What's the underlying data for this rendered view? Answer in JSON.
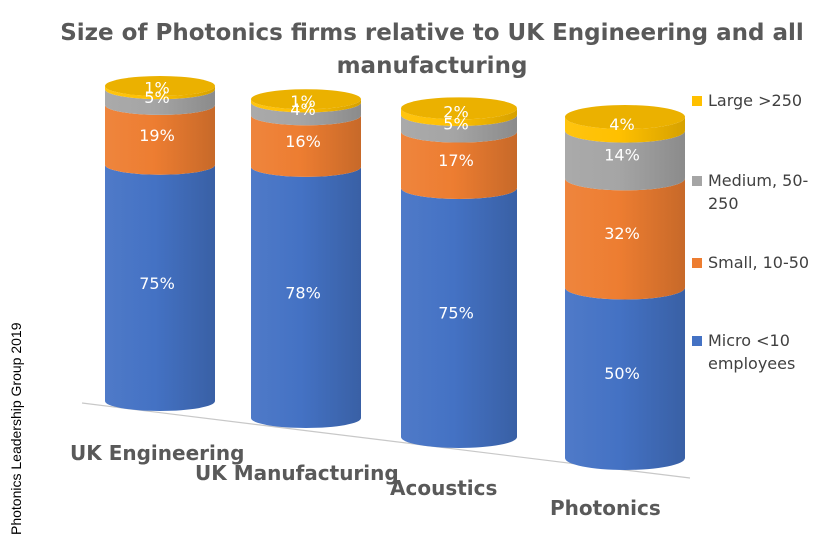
{
  "chart_data": {
    "type": "bar",
    "title_lines": [
      "Size of Photonics firms relative to UK Engineering and all",
      "manufacturing"
    ],
    "categories": [
      "UK Engineering",
      "UK Manufacturing",
      "Acoustics",
      "Photonics"
    ],
    "series": [
      {
        "name": "Micro <10 employees",
        "legend_lines": [
          "Micro <10",
          "employees"
        ],
        "color": "#4472C4",
        "values": [
          75,
          78,
          75,
          50
        ]
      },
      {
        "name": "Small, 10-50",
        "legend_lines": [
          "Small, 10-50"
        ],
        "color": "#ED7D31",
        "values": [
          19,
          16,
          17,
          32
        ]
      },
      {
        "name": "Medium, 50-250",
        "legend_lines": [
          "Medium, 50-",
          "250"
        ],
        "color": "#A5A5A5",
        "values": [
          5,
          4,
          5,
          14
        ]
      },
      {
        "name": "Large >250",
        "legend_lines": [
          "Large >250"
        ],
        "color": "#FFC000",
        "values": [
          1,
          1,
          2,
          4
        ]
      }
    ],
    "labels": [
      [
        "75%",
        "78%",
        "75%",
        "50%"
      ],
      [
        "19%",
        "16%",
        "17%",
        "32%"
      ],
      [
        "5%",
        "4%",
        "5%",
        "14%"
      ],
      [
        "1%",
        "1%",
        "2%",
        "4%"
      ]
    ],
    "stacked": true,
    "style": "3d-cylinder",
    "ylim": [
      0,
      100
    ],
    "legend": "right",
    "grid": false,
    "side_text": "Photonics Leadership Group 2019"
  }
}
